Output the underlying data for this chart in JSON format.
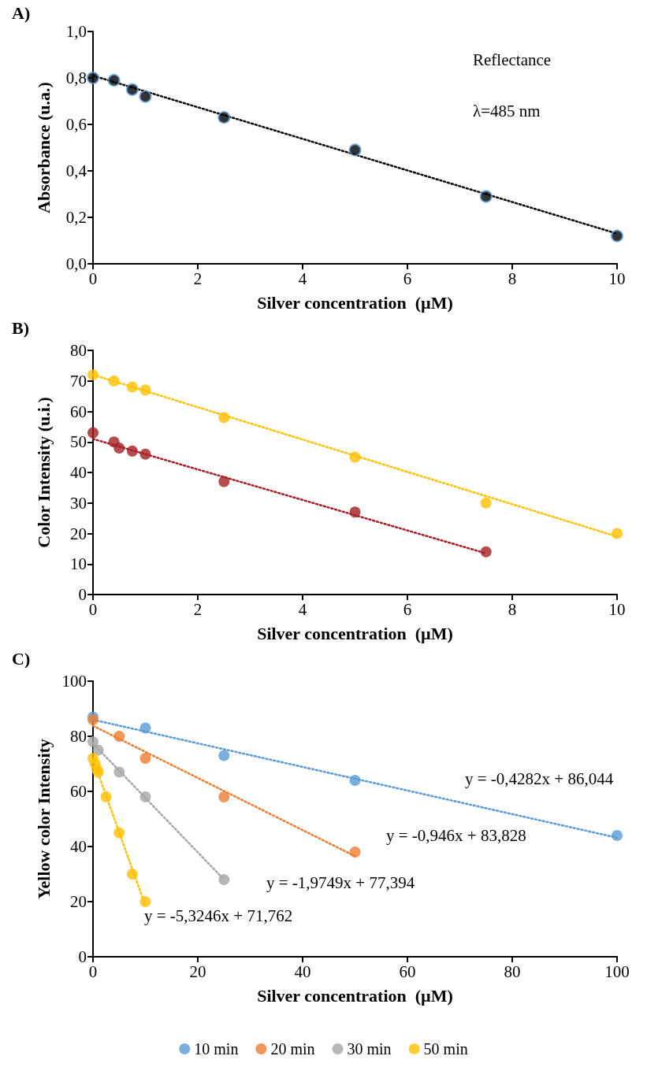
{
  "chart_data": [
    {
      "type": "scatter",
      "title": "A)",
      "xlabel": "Silver concentration  (µM)",
      "ylabel": "Absorbance (u.a.)",
      "grid": false,
      "legend": false,
      "marker": "circle",
      "annotations": [
        "Reflectance",
        "λ=485 nm"
      ],
      "xlim": [
        0,
        10
      ],
      "xticks": [
        0,
        2,
        4,
        6,
        8,
        10
      ],
      "ylim": [
        0,
        1
      ],
      "yticks": [
        {
          "value": 0,
          "label": "0,0"
        },
        {
          "value": 0.2,
          "label": "0,2"
        },
        {
          "value": 0.4,
          "label": "0,4"
        },
        {
          "value": 0.6,
          "label": "0,6"
        },
        {
          "value": 0.8,
          "label": "0,8"
        },
        {
          "value": 1,
          "label": "1,0"
        }
      ],
      "series": [
        {
          "color": "#000000",
          "x": [
            0,
            0.4,
            0.75,
            1,
            2.5,
            5,
            7.5,
            10
          ],
          "values": [
            0.8,
            0.79,
            0.75,
            0.72,
            0.63,
            0.49,
            0.29,
            0.12
          ]
        },
        {
          "type": "line",
          "color": "#000000",
          "marker": "none",
          "line_style": "dotted",
          "x": [
            0,
            10
          ],
          "values": [
            0.81,
            0.13
          ]
        }
      ]
    },
    {
      "type": "scatter",
      "title": "B)",
      "xlabel": "Silver concentration  (µM)",
      "ylabel": "Color Intensity (u.i.)",
      "grid": false,
      "legend": false,
      "marker": "circle",
      "xlim": [
        0,
        10
      ],
      "xticks": [
        0,
        2,
        4,
        6,
        8,
        10
      ],
      "ylim": [
        0,
        80
      ],
      "yticks": [
        0,
        10,
        20,
        30,
        40,
        50,
        60,
        70,
        80
      ],
      "series": [
        {
          "color": "#ffc000",
          "x": [
            0,
            0.4,
            0.75,
            1,
            2.5,
            5,
            7.5,
            10
          ],
          "values": [
            72,
            70,
            68,
            67,
            58,
            45,
            30,
            20
          ]
        },
        {
          "color": "#a31f24",
          "x": [
            0,
            0.4,
            0.5,
            0.75,
            1,
            2.5,
            5,
            7.5
          ],
          "values": [
            53,
            50,
            48,
            47,
            46,
            37,
            27,
            14
          ]
        },
        {
          "type": "line",
          "color": "#ffc000",
          "marker": "none",
          "line_style": "dotted",
          "x": [
            0,
            10
          ],
          "values": [
            72,
            19
          ]
        },
        {
          "type": "line",
          "color": "#a31f24",
          "marker": "none",
          "line_style": "dotted",
          "x": [
            0,
            7.5
          ],
          "values": [
            51,
            13.5
          ]
        }
      ]
    },
    {
      "type": "scatter",
      "title": "C)",
      "xlabel": "Silver concentration  (µM)",
      "ylabel": "Yellow color Intensity",
      "grid": false,
      "legend": "bottom",
      "marker": "circle",
      "annotations": [
        "y = -0,4282x + 86,044",
        "y = -0,946x + 83,828",
        "y = -1,9749x + 77,394",
        "y = -5,3246x + 71,762"
      ],
      "xlim": [
        0,
        100
      ],
      "xticks": [
        0,
        20,
        40,
        60,
        80,
        100
      ],
      "ylim": [
        0,
        100
      ],
      "yticks": [
        0,
        20,
        40,
        60,
        80,
        100
      ],
      "series": [
        {
          "name": "10 min",
          "color": "#5b9bd5",
          "x": [
            0,
            10,
            25,
            50,
            100
          ],
          "values": [
            87,
            83,
            73,
            64,
            44
          ]
        },
        {
          "name": "20 min",
          "color": "#ed7d31",
          "x": [
            0,
            5,
            10,
            25,
            50
          ],
          "values": [
            86,
            80,
            72,
            58,
            38
          ]
        },
        {
          "name": "30 min",
          "color": "#a5a5a5",
          "x": [
            0,
            1,
            5,
            10,
            25
          ],
          "values": [
            78,
            75,
            67,
            58,
            28
          ]
        },
        {
          "name": "50 min",
          "color": "#ffc000",
          "x": [
            0,
            0.4,
            0.75,
            1,
            2.5,
            5,
            7.5,
            10
          ],
          "values": [
            72,
            70,
            68,
            67,
            58,
            45,
            30,
            20
          ]
        },
        {
          "type": "line",
          "color": "#5b9bd5",
          "marker": "none",
          "line_style": "dotted",
          "x": [
            0,
            100
          ],
          "values": [
            86.0,
            43.2
          ]
        },
        {
          "type": "line",
          "color": "#ed7d31",
          "marker": "none",
          "line_style": "dotted",
          "x": [
            0,
            50
          ],
          "values": [
            83.8,
            36.5
          ]
        },
        {
          "type": "line",
          "color": "#a5a5a5",
          "marker": "none",
          "line_style": "dotted",
          "x": [
            0,
            25
          ],
          "values": [
            77.4,
            28.0
          ]
        },
        {
          "type": "line",
          "color": "#ffc000",
          "marker": "none",
          "line_style": "dotted",
          "x": [
            0,
            10
          ],
          "values": [
            71.8,
            18.5
          ]
        }
      ]
    }
  ]
}
